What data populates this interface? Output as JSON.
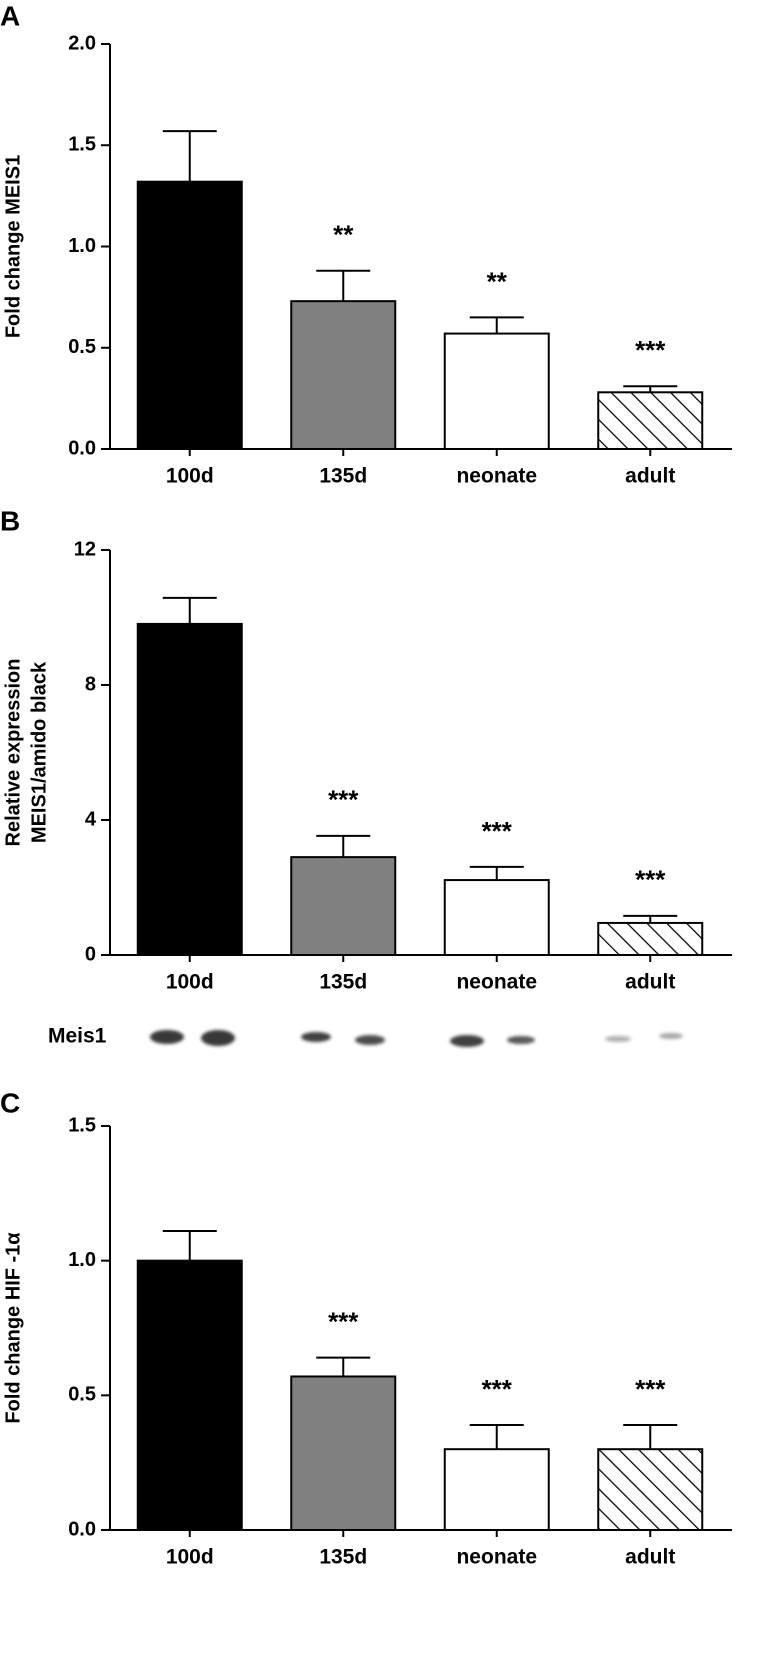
{
  "chart_data": [
    {
      "type": "bar",
      "panel": "A",
      "ylabel": "Fold change MEIS1",
      "categories": [
        "100d",
        "135d",
        "neonate",
        "adult"
      ],
      "values": [
        1.32,
        0.73,
        0.57,
        0.28
      ],
      "errors": [
        0.25,
        0.15,
        0.08,
        0.03
      ],
      "colors": [
        "#000000",
        "#808080",
        "#ffffff",
        "#ffffff"
      ],
      "patterns": [
        "solid",
        "solid",
        "solid",
        "hatch"
      ],
      "annotations": [
        null,
        "**",
        "**",
        "***"
      ],
      "ylim": [
        0,
        2
      ],
      "yticks": [
        {
          "value": 0,
          "label": "0.0"
        },
        0.5,
        {
          "value": 1,
          "label": "1.0"
        },
        1.5,
        {
          "value": 2,
          "label": "2.0"
        }
      ]
    },
    {
      "type": "bar",
      "panel": "B",
      "ylabel": [
        "Relative expression",
        "MEIS1/amido black"
      ],
      "categories": [
        "100d",
        "135d",
        "neonate",
        "adult"
      ],
      "values": [
        9.81,
        2.9,
        2.22,
        0.95
      ],
      "errors": [
        0.77,
        0.63,
        0.39,
        0.21
      ],
      "colors": [
        "#000000",
        "#808080",
        "#ffffff",
        "#ffffff"
      ],
      "patterns": [
        "solid",
        "solid",
        "solid",
        "hatch"
      ],
      "annotations": [
        null,
        "***",
        "***",
        "***"
      ],
      "ylim": [
        0,
        12
      ],
      "yticks": [
        0,
        4,
        8,
        12
      ],
      "blot_label": "Meis1"
    },
    {
      "type": "bar",
      "panel": "C",
      "ylabel": "Fold change HIF -1α",
      "categories": [
        "100d",
        "135d",
        "neonate",
        "adult"
      ],
      "values": [
        1.0,
        0.57,
        0.3,
        0.3
      ],
      "errors": [
        0.11,
        0.07,
        0.09,
        0.09
      ],
      "colors": [
        "#000000",
        "#808080",
        "#ffffff",
        "#ffffff"
      ],
      "patterns": [
        "solid",
        "solid",
        "solid",
        "hatch"
      ],
      "annotations": [
        null,
        "***",
        "***",
        "***"
      ],
      "ylim": [
        0,
        1.5
      ],
      "yticks": [
        {
          "value": 0,
          "label": "0.0"
        },
        0.5,
        {
          "value": 1,
          "label": "1.0"
        },
        1.5
      ]
    }
  ]
}
